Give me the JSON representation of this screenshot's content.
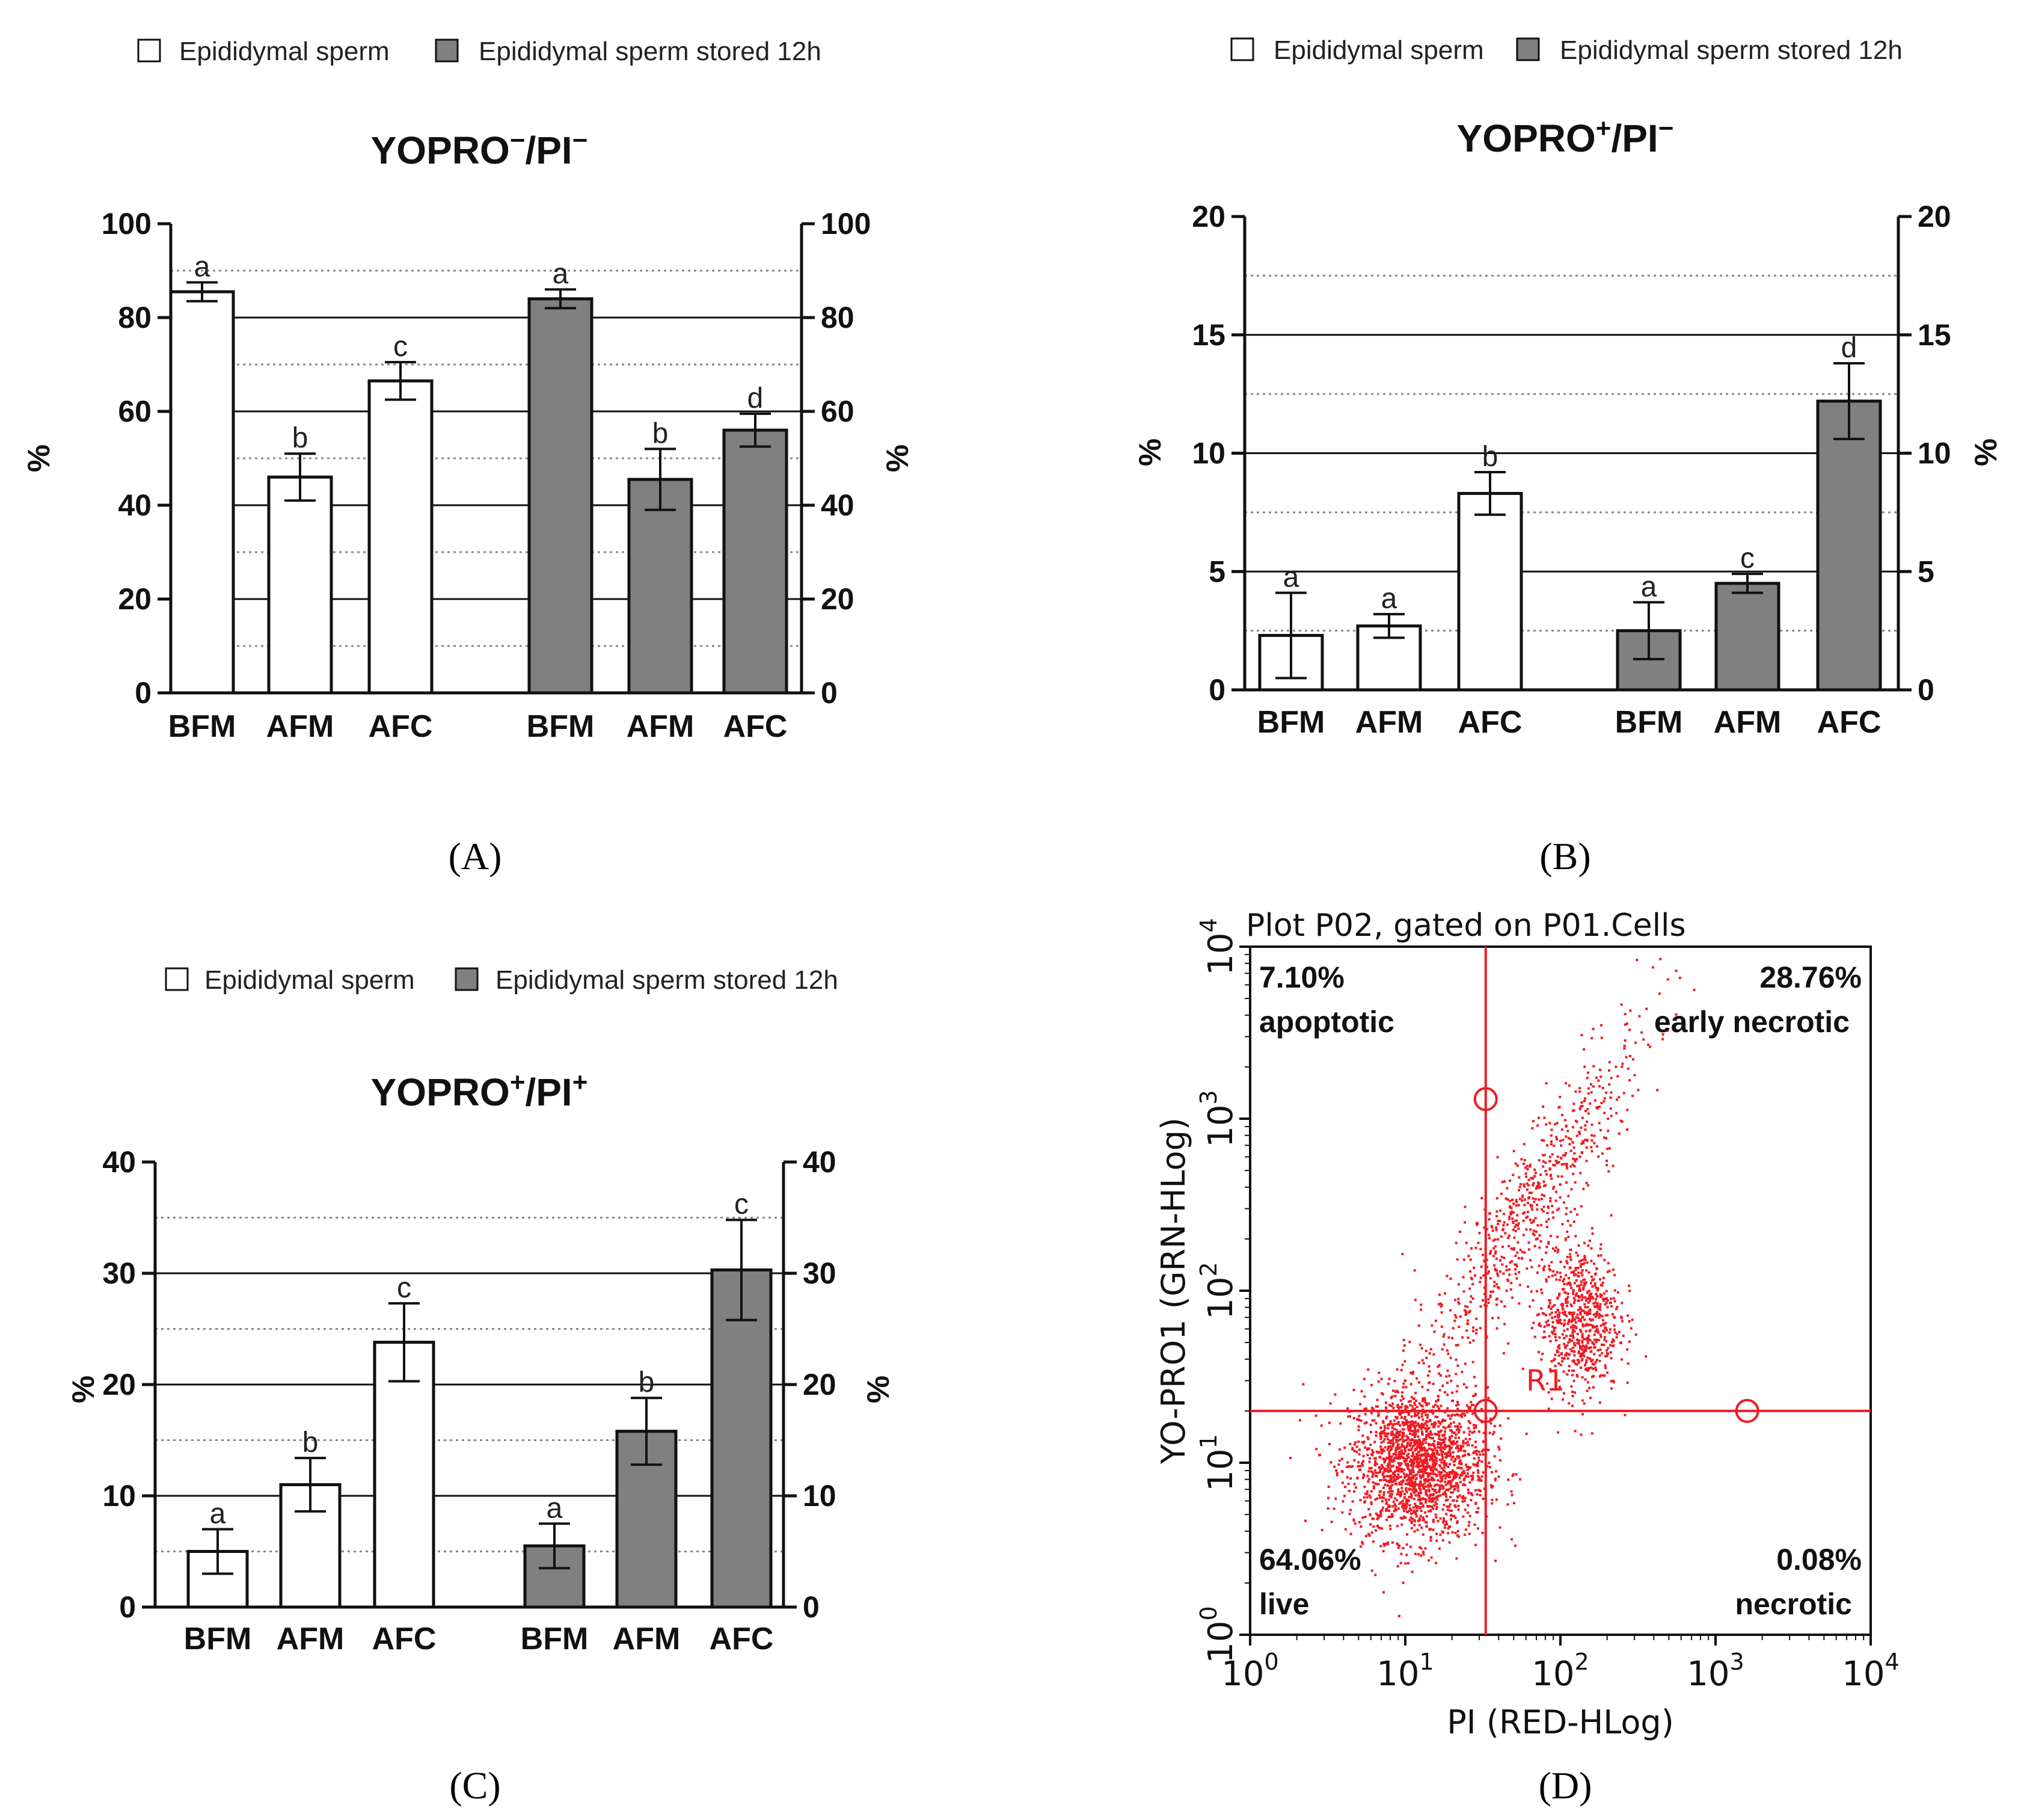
{
  "colors": {
    "bar_white": "#ffffff",
    "bar_gray": "#808080",
    "axis": "#111111",
    "flow_red": "#ee1c24"
  },
  "chart_data": [
    {
      "id": "A",
      "panel_label": "(A)",
      "type": "bar",
      "title_main": "YOPRO",
      "title_sup1": "−",
      "title_mid": "/PI",
      "title_sup2": "−",
      "legend": [
        "Epididymal sperm",
        "Epididymal sperm stored 12h"
      ],
      "ylabel": "%",
      "ylim": [
        0,
        100
      ],
      "yticks": [
        0,
        20,
        40,
        60,
        80,
        100
      ],
      "grid_solid": [
        20,
        40,
        60,
        80
      ],
      "grid_dotted": [
        10,
        30,
        50,
        70,
        90
      ],
      "categories": [
        "BFM",
        "AFM",
        "AFC"
      ],
      "series": [
        {
          "name": "Epididymal sperm",
          "values": [
            85.5,
            46,
            66.5
          ],
          "errors": [
            2,
            5,
            4
          ],
          "letters": [
            "a",
            "b",
            "c"
          ]
        },
        {
          "name": "Epididymal sperm stored 12h",
          "values": [
            84,
            45.5,
            56
          ],
          "errors": [
            2,
            6.5,
            3.5
          ],
          "letters": [
            "a",
            "b",
            "d"
          ]
        }
      ]
    },
    {
      "id": "B",
      "panel_label": "(B)",
      "type": "bar",
      "title_main": "YOPRO",
      "title_sup1": "+",
      "title_mid": "/PI",
      "title_sup2": "−",
      "legend": [
        "Epididymal sperm",
        "Epididymal sperm stored 12h"
      ],
      "ylabel": "%",
      "ylim": [
        0,
        20
      ],
      "yticks": [
        0,
        5,
        10,
        15,
        20
      ],
      "grid_solid": [
        5,
        10,
        15
      ],
      "grid_dotted": [
        2.5,
        7.5,
        12.5,
        17.5
      ],
      "categories": [
        "BFM",
        "AFM",
        "AFC"
      ],
      "series": [
        {
          "name": "Epididymal sperm",
          "values": [
            2.3,
            2.7,
            8.3
          ],
          "errors": [
            1.8,
            0.5,
            0.9
          ],
          "letters": [
            "a",
            "a",
            "b"
          ]
        },
        {
          "name": "Epididymal sperm stored 12h",
          "values": [
            2.5,
            4.5,
            12.2
          ],
          "errors": [
            1.2,
            0.4,
            1.6
          ],
          "letters": [
            "a",
            "c",
            "d"
          ]
        }
      ]
    },
    {
      "id": "C",
      "panel_label": "(C)",
      "type": "bar",
      "title_main": "YOPRO",
      "title_sup1": "+",
      "title_mid": "/PI",
      "title_sup2": "+",
      "legend": [
        "Epididymal sperm",
        "Epididymal sperm stored 12h"
      ],
      "ylabel": "%",
      "ylim": [
        0,
        40
      ],
      "yticks": [
        0,
        10,
        20,
        30,
        40
      ],
      "grid_solid": [
        10,
        20,
        30
      ],
      "grid_dotted": [
        5,
        15,
        25,
        35
      ],
      "categories": [
        "BFM",
        "AFM",
        "AFC"
      ],
      "series": [
        {
          "name": "Epididymal sperm",
          "values": [
            5,
            11,
            23.8
          ],
          "errors": [
            2,
            2.4,
            3.5
          ],
          "letters": [
            "a",
            "b",
            "c"
          ]
        },
        {
          "name": "Epididymal sperm stored 12h",
          "values": [
            5.5,
            15.8,
            30.3
          ],
          "errors": [
            2,
            3,
            4.5
          ],
          "letters": [
            "a",
            "b",
            "c"
          ]
        }
      ]
    },
    {
      "id": "D",
      "panel_label": "(D)",
      "type": "scatter",
      "title": "Plot P02, gated on P01.Cells",
      "xlabel": "PI (RED-HLog)",
      "ylabel": "YO-PRO1 (GRN-HLog)",
      "xscale": "log",
      "yscale": "log",
      "xlim": [
        1,
        10000
      ],
      "ylim": [
        1,
        10000
      ],
      "tick_base": "10",
      "tick_exponents": [
        "0",
        "1",
        "2",
        "3",
        "4"
      ],
      "gate_name": "R1",
      "gate_x": 33,
      "gate_y": 20,
      "quadrants": {
        "upper_left": {
          "percent": "7.10%",
          "label": "apoptotic"
        },
        "upper_right": {
          "percent": "28.76%",
          "label": "early necrotic"
        },
        "lower_left": {
          "percent": "64.06%",
          "label": "live"
        },
        "lower_right": {
          "percent": "0.08%",
          "label": "necrotic"
        }
      },
      "populations": [
        {
          "name": "live",
          "center_x": 12,
          "center_y": 10,
          "spread_x_decades": 0.22,
          "spread_y_decades": 0.22
        },
        {
          "name": "cluster",
          "center_x": 130,
          "center_y": 70,
          "spread_x_decades": 0.13,
          "spread_y_decades": 0.22
        },
        {
          "name": "diagonal",
          "center_x": 60,
          "center_y": 300,
          "spread_x_decades": 0.35,
          "spread_y_decades": 0.45
        }
      ]
    }
  ]
}
